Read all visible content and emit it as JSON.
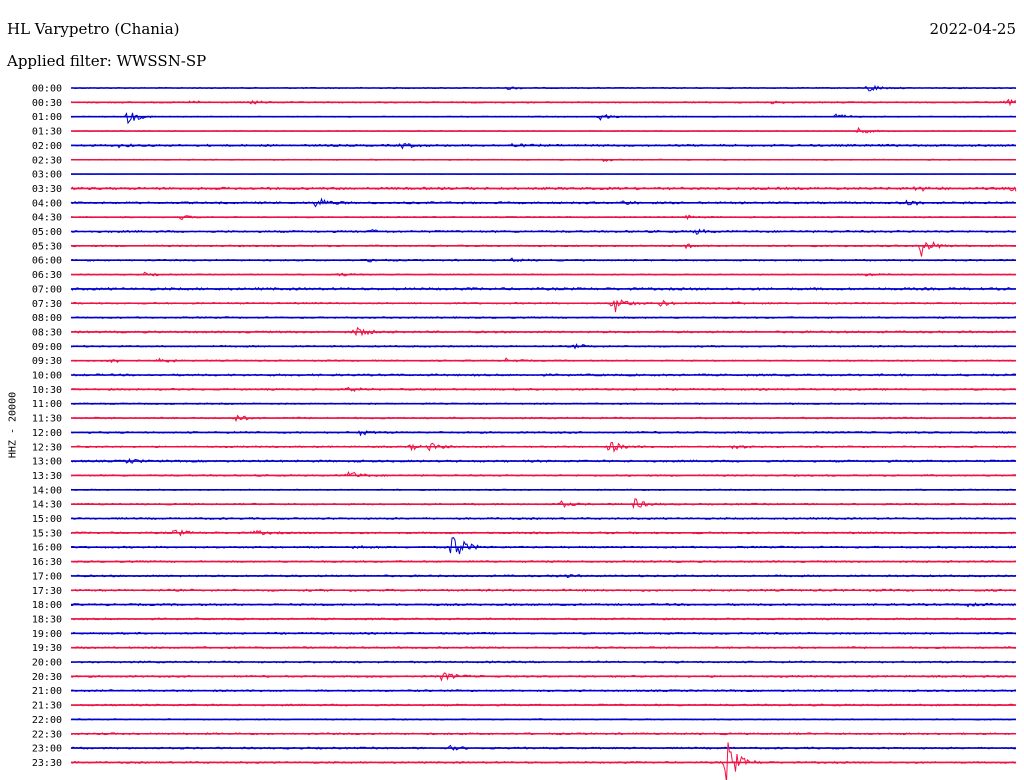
{
  "header": {
    "station": "HL Varypetro (Chania)",
    "date": "2022-04-25",
    "filter": "Applied filter: WWSSN-SP",
    "channel": "HHZ - 20000"
  },
  "chart_data": {
    "type": "line",
    "title": "HL Varypetro (Chania)",
    "ylabel": "HHZ - 20000",
    "colors": [
      "#0000cc",
      "#ee1144"
    ],
    "row_labels": [
      "00:00",
      "00:30",
      "01:00",
      "01:30",
      "02:00",
      "02:30",
      "03:00",
      "03:30",
      "04:00",
      "04:30",
      "05:00",
      "05:30",
      "06:00",
      "06:30",
      "07:00",
      "07:30",
      "08:00",
      "08:30",
      "09:00",
      "09:30",
      "10:00",
      "10:30",
      "11:00",
      "11:30",
      "12:00",
      "12:30",
      "13:00",
      "13:30",
      "14:00",
      "14:30",
      "15:00",
      "15:30",
      "16:00",
      "16:30",
      "17:00",
      "17:30",
      "18:00",
      "18:30",
      "19:00",
      "19:30",
      "20:00",
      "20:30",
      "21:00",
      "21:30",
      "22:00",
      "22:30",
      "23:00",
      "23:30"
    ],
    "time_span_minutes": 30,
    "noise_amplitude": [
      0.6,
      0.7,
      0.5,
      0.5,
      1.0,
      0.5,
      0.2,
      1.2,
      1.0,
      0.6,
      1.0,
      0.8,
      0.8,
      0.6,
      1.2,
      0.8,
      0.8,
      1.0,
      0.8,
      0.7,
      1.0,
      0.9,
      0.7,
      0.8,
      0.9,
      0.8,
      1.0,
      0.8,
      0.6,
      0.8,
      0.9,
      0.9,
      0.9,
      0.9,
      0.9,
      1.0,
      1.0,
      0.9,
      0.9,
      0.9,
      0.9,
      0.9,
      0.9,
      0.9,
      0.6,
      0.9,
      0.9,
      0.9
    ],
    "events": [
      {
        "row": 0,
        "minute": 13.9,
        "amplitude": 1.5
      },
      {
        "row": 0,
        "minute": 25.3,
        "amplitude": 4.5
      },
      {
        "row": 1,
        "minute": 3.8,
        "amplitude": 1.5
      },
      {
        "row": 1,
        "minute": 5.7,
        "amplitude": 2.0
      },
      {
        "row": 1,
        "minute": 22.2,
        "amplitude": 1.5
      },
      {
        "row": 1,
        "minute": 29.7,
        "amplitude": 3.0
      },
      {
        "row": 2,
        "minute": 1.8,
        "amplitude": 7.0
      },
      {
        "row": 2,
        "minute": 16.8,
        "amplitude": 3.0
      },
      {
        "row": 2,
        "minute": 24.3,
        "amplitude": 3.0
      },
      {
        "row": 3,
        "minute": 25.0,
        "amplitude": 3.0
      },
      {
        "row": 4,
        "minute": 1.5,
        "amplitude": 1.5
      },
      {
        "row": 4,
        "minute": 10.5,
        "amplitude": 3.0
      },
      {
        "row": 4,
        "minute": 14.0,
        "amplitude": 1.5
      },
      {
        "row": 5,
        "minute": 16.9,
        "amplitude": 1.5
      },
      {
        "row": 7,
        "minute": 26.8,
        "amplitude": 3.0
      },
      {
        "row": 7,
        "minute": 29.9,
        "amplitude": 3.0
      },
      {
        "row": 8,
        "minute": 7.8,
        "amplitude": 6.0
      },
      {
        "row": 8,
        "minute": 17.5,
        "amplitude": 2.0
      },
      {
        "row": 8,
        "minute": 26.5,
        "amplitude": 3.5
      },
      {
        "row": 9,
        "minute": 3.5,
        "amplitude": 2.0
      },
      {
        "row": 9,
        "minute": 19.5,
        "amplitude": 2.0
      },
      {
        "row": 10,
        "minute": 9.5,
        "amplitude": 1.5
      },
      {
        "row": 10,
        "minute": 19.8,
        "amplitude": 2.5
      },
      {
        "row": 11,
        "minute": 19.5,
        "amplitude": 2.0
      },
      {
        "row": 11,
        "minute": 27.0,
        "amplitude": 11.0
      },
      {
        "row": 12,
        "minute": 9.5,
        "amplitude": 2.0
      },
      {
        "row": 12,
        "minute": 14.0,
        "amplitude": 1.5
      },
      {
        "row": 13,
        "minute": 2.3,
        "amplitude": 2.0
      },
      {
        "row": 13,
        "minute": 8.5,
        "amplitude": 1.5
      },
      {
        "row": 13,
        "minute": 25.2,
        "amplitude": 2.0
      },
      {
        "row": 15,
        "minute": 17.2,
        "amplitude": 11.0
      },
      {
        "row": 15,
        "minute": 18.7,
        "amplitude": 3.0
      },
      {
        "row": 15,
        "minute": 21.0,
        "amplitude": 2.0
      },
      {
        "row": 17,
        "minute": 9.0,
        "amplitude": 6.0
      },
      {
        "row": 18,
        "minute": 16.0,
        "amplitude": 2.0
      },
      {
        "row": 19,
        "minute": 1.2,
        "amplitude": 3.0
      },
      {
        "row": 19,
        "minute": 2.8,
        "amplitude": 3.0
      },
      {
        "row": 19,
        "minute": 13.8,
        "amplitude": 2.0
      },
      {
        "row": 21,
        "minute": 8.8,
        "amplitude": 2.0
      },
      {
        "row": 23,
        "minute": 5.2,
        "amplitude": 3.5
      },
      {
        "row": 24,
        "minute": 9.2,
        "amplitude": 2.5
      },
      {
        "row": 25,
        "minute": 10.8,
        "amplitude": 2.5
      },
      {
        "row": 25,
        "minute": 11.4,
        "amplitude": 3.5
      },
      {
        "row": 25,
        "minute": 17.1,
        "amplitude": 6.5
      },
      {
        "row": 25,
        "minute": 21.0,
        "amplitude": 2.5
      },
      {
        "row": 26,
        "minute": 1.8,
        "amplitude": 2.0
      },
      {
        "row": 27,
        "minute": 8.8,
        "amplitude": 5.0
      },
      {
        "row": 29,
        "minute": 15.5,
        "amplitude": 3.5
      },
      {
        "row": 29,
        "minute": 17.9,
        "amplitude": 5.0
      },
      {
        "row": 31,
        "minute": 3.3,
        "amplitude": 3.5
      },
      {
        "row": 31,
        "minute": 5.8,
        "amplitude": 2.5
      },
      {
        "row": 32,
        "minute": 9.0,
        "amplitude": 2.0
      },
      {
        "row": 32,
        "minute": 12.1,
        "amplitude": 18.0
      },
      {
        "row": 34,
        "minute": 15.5,
        "amplitude": 2.0
      },
      {
        "row": 36,
        "minute": 28.5,
        "amplitude": 2.5
      },
      {
        "row": 41,
        "minute": 11.8,
        "amplitude": 5.0
      },
      {
        "row": 46,
        "minute": 12.0,
        "amplitude": 2.0
      },
      {
        "row": 47,
        "minute": 20.8,
        "amplitude": 26.0
      }
    ]
  }
}
